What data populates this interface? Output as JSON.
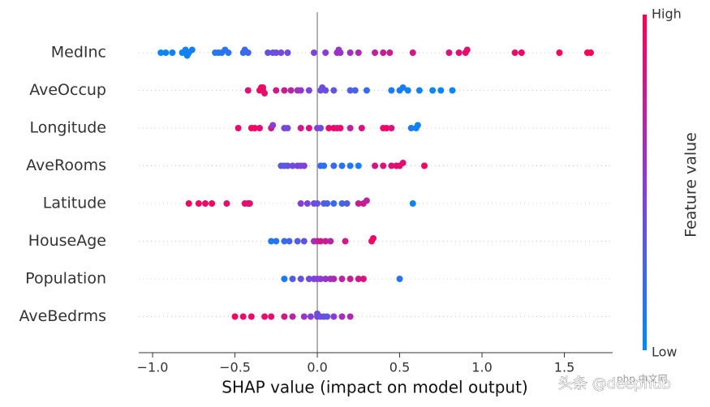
{
  "chart_data": {
    "type": "beeswarm",
    "xlabel": "SHAP value (impact on model output)",
    "colorbar_label": "Feature value",
    "colorbar_high": "High",
    "colorbar_low": "Low",
    "colormap": [
      "#008bfb",
      "#8a3cd6",
      "#ff0052"
    ],
    "watermark": "头条 @deephub",
    "watermark_logo": "php 中文网",
    "xlim": [
      -1.084,
      1.793
    ],
    "xticks": [
      {
        "value": -1,
        "label": "−1.0"
      },
      {
        "value": -0.5,
        "label": "−0.5"
      },
      {
        "value": 0,
        "label": "0.0"
      },
      {
        "value": 0.5,
        "label": "0.5"
      },
      {
        "value": 1,
        "label": "1.0"
      },
      {
        "value": 1.5,
        "label": "1.5"
      }
    ],
    "categories": [
      "MedInc",
      "AveOccup",
      "Longitude",
      "AveRooms",
      "Latitude",
      "HouseAge",
      "Population",
      "AveBedrms"
    ],
    "points": [
      [
        [
          -0.95,
          0.02
        ],
        [
          -0.92,
          0.03
        ],
        [
          -0.88,
          0.05
        ],
        [
          -0.82,
          0.04
        ],
        [
          -0.8,
          0.05
        ],
        [
          -0.8,
          0.06
        ],
        [
          -0.79,
          0.05
        ],
        [
          -0.78,
          0.07
        ],
        [
          -0.76,
          0.08
        ],
        [
          -0.62,
          0.12
        ],
        [
          -0.6,
          0.13
        ],
        [
          -0.58,
          0.15
        ],
        [
          -0.56,
          0.14
        ],
        [
          -0.54,
          0.16
        ],
        [
          -0.45,
          0.2
        ],
        [
          -0.44,
          0.22
        ],
        [
          -0.42,
          0.22
        ],
        [
          -0.3,
          0.35
        ],
        [
          -0.27,
          0.38
        ],
        [
          -0.25,
          0.4
        ],
        [
          -0.22,
          0.42
        ],
        [
          -0.18,
          0.4
        ],
        [
          -0.02,
          0.45
        ],
        [
          0.05,
          0.5
        ],
        [
          0.12,
          0.55
        ],
        [
          0.13,
          0.55
        ],
        [
          0.14,
          0.58
        ],
        [
          0.2,
          0.6
        ],
        [
          0.25,
          0.65
        ],
        [
          0.35,
          0.72
        ],
        [
          0.4,
          0.75
        ],
        [
          0.44,
          0.75
        ],
        [
          0.58,
          0.8
        ],
        [
          0.8,
          0.85
        ],
        [
          0.86,
          0.88
        ],
        [
          0.9,
          0.9
        ],
        [
          0.91,
          0.9
        ],
        [
          1.2,
          0.93
        ],
        [
          1.24,
          0.95
        ],
        [
          1.47,
          0.97
        ],
        [
          1.64,
          1
        ],
        [
          1.66,
          1
        ]
      ],
      [
        [
          -0.42,
          0.85
        ],
        [
          -0.35,
          0.95
        ],
        [
          -0.34,
          0.95
        ],
        [
          -0.33,
          0.9
        ],
        [
          -0.33,
          0.92
        ],
        [
          -0.32,
          0.9
        ],
        [
          -0.25,
          0.8
        ],
        [
          -0.2,
          0.75
        ],
        [
          -0.16,
          0.7
        ],
        [
          -0.12,
          0.6
        ],
        [
          -0.1,
          0.55
        ],
        [
          -0.05,
          0.45
        ],
        [
          0.02,
          0.4
        ],
        [
          0.03,
          0.4
        ],
        [
          0.05,
          0.38
        ],
        [
          0.1,
          0.35
        ],
        [
          0.2,
          0.3
        ],
        [
          0.23,
          0.25
        ],
        [
          0.3,
          0.2
        ],
        [
          0.45,
          0.1
        ],
        [
          0.5,
          0.08
        ],
        [
          0.52,
          0.08
        ],
        [
          0.55,
          0.06
        ],
        [
          0.62,
          0.05
        ],
        [
          0.7,
          0.04
        ],
        [
          0.75,
          0.03
        ],
        [
          0.82,
          0.02
        ]
      ],
      [
        [
          -0.48,
          0.9
        ],
        [
          -0.4,
          0.92
        ],
        [
          -0.38,
          0.95
        ],
        [
          -0.35,
          0.9
        ],
        [
          -0.28,
          0.8
        ],
        [
          -0.27,
          0.5
        ],
        [
          -0.2,
          0.45
        ],
        [
          -0.18,
          0.4
        ],
        [
          -0.1,
          0.8
        ],
        [
          -0.05,
          0.85
        ],
        [
          0,
          0.5
        ],
        [
          0.02,
          0.4
        ],
        [
          0.07,
          0.9
        ],
        [
          0.1,
          0.95
        ],
        [
          0.12,
          0.85
        ],
        [
          0.14,
          0.9
        ],
        [
          0.2,
          0.7
        ],
        [
          0.27,
          0.85
        ],
        [
          0.4,
          0.9
        ],
        [
          0.42,
          0.95
        ],
        [
          0.45,
          0.85
        ],
        [
          0.57,
          0.1
        ],
        [
          0.6,
          0.05
        ],
        [
          0.61,
          0.05
        ]
      ],
      [
        [
          -0.22,
          0.35
        ],
        [
          -0.2,
          0.3
        ],
        [
          -0.18,
          0.35
        ],
        [
          -0.15,
          0.4
        ],
        [
          -0.12,
          0.45
        ],
        [
          -0.1,
          0.4
        ],
        [
          -0.08,
          0.5
        ],
        [
          0.02,
          0.2
        ],
        [
          0.04,
          0.15
        ],
        [
          0.1,
          0.2
        ],
        [
          0.15,
          0.15
        ],
        [
          0.2,
          0.12
        ],
        [
          0.25,
          0.1
        ],
        [
          0.35,
          0.8
        ],
        [
          0.4,
          0.85
        ],
        [
          0.45,
          0.85
        ],
        [
          0.48,
          0.9
        ],
        [
          0.5,
          0.9
        ],
        [
          0.52,
          0.88
        ],
        [
          0.65,
          0.95
        ]
      ],
      [
        [
          -0.78,
          0.95
        ],
        [
          -0.72,
          0.95
        ],
        [
          -0.68,
          0.92
        ],
        [
          -0.64,
          0.95
        ],
        [
          -0.55,
          0.9
        ],
        [
          -0.44,
          0.9
        ],
        [
          -0.42,
          0.92
        ],
        [
          -0.41,
          0.88
        ],
        [
          -0.1,
          0.5
        ],
        [
          -0.06,
          0.45
        ],
        [
          -0.02,
          0.4
        ],
        [
          0,
          0.35
        ],
        [
          0.04,
          0.3
        ],
        [
          0.06,
          0.25
        ],
        [
          0.1,
          0.2
        ],
        [
          0.15,
          0.2
        ],
        [
          0.18,
          0.3
        ],
        [
          0.25,
          0.75
        ],
        [
          0.28,
          0.8
        ],
        [
          0.3,
          0.7
        ],
        [
          0.58,
          0.05
        ]
      ],
      [
        [
          -0.28,
          0.1
        ],
        [
          -0.25,
          0.15
        ],
        [
          -0.2,
          0.2
        ],
        [
          -0.17,
          0.25
        ],
        [
          -0.12,
          0.3
        ],
        [
          -0.08,
          0.35
        ],
        [
          -0.02,
          0.6
        ],
        [
          0,
          0.7
        ],
        [
          0.02,
          0.8
        ],
        [
          0.05,
          0.75
        ],
        [
          0.08,
          0.7
        ],
        [
          0.17,
          0.8
        ],
        [
          0.33,
          0.95
        ],
        [
          0.34,
          0.95
        ]
      ],
      [
        [
          -0.2,
          0.1
        ],
        [
          -0.15,
          0.3
        ],
        [
          -0.1,
          0.35
        ],
        [
          -0.05,
          0.4
        ],
        [
          -0.02,
          0.45
        ],
        [
          0,
          0.5
        ],
        [
          0.02,
          0.5
        ],
        [
          0.05,
          0.55
        ],
        [
          0.08,
          0.6
        ],
        [
          0.1,
          0.65
        ],
        [
          0.15,
          0.7
        ],
        [
          0.2,
          0.75
        ],
        [
          0.25,
          0.8
        ],
        [
          0.28,
          0.85
        ],
        [
          0.5,
          0.15
        ]
      ],
      [
        [
          -0.5,
          0.95
        ],
        [
          -0.45,
          0.9
        ],
        [
          -0.4,
          0.92
        ],
        [
          -0.32,
          0.9
        ],
        [
          -0.28,
          0.9
        ],
        [
          -0.2,
          0.8
        ],
        [
          -0.15,
          0.7
        ],
        [
          -0.08,
          0.55
        ],
        [
          -0.04,
          0.5
        ],
        [
          0,
          0.45
        ],
        [
          0,
          0.4
        ],
        [
          0.02,
          0.35
        ],
        [
          0.04,
          0.4
        ],
        [
          0.06,
          0.35
        ],
        [
          0.1,
          0.5
        ],
        [
          0.15,
          0.6
        ],
        [
          0.2,
          0.65
        ]
      ]
    ]
  }
}
